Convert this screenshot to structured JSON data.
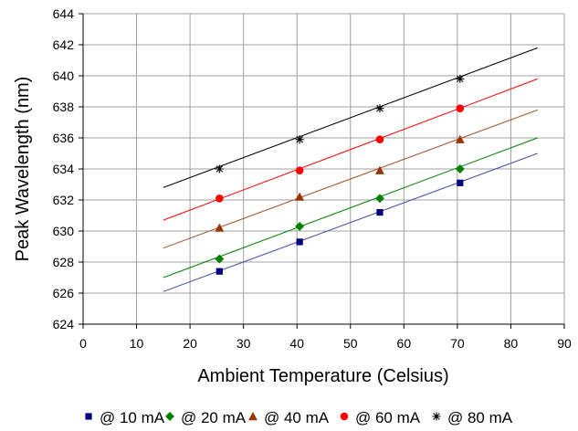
{
  "chart_data": {
    "type": "scatter",
    "xlabel": "Ambient Temperature (Celsius)",
    "ylabel": "Peak Wavelength (nm)",
    "xlim": [
      0,
      90
    ],
    "ylim": [
      624,
      644
    ],
    "xticks": [
      0,
      10,
      20,
      30,
      40,
      50,
      60,
      70,
      80,
      90
    ],
    "yticks": [
      624,
      626,
      628,
      630,
      632,
      634,
      636,
      638,
      640,
      642,
      644
    ],
    "grid": true,
    "legend_position": "bottom",
    "series": [
      {
        "name": "@ 10 mA",
        "marker": "square",
        "color": "#000080",
        "trend_color": "#4b4ba5",
        "x": [
          25.5,
          40.5,
          55.5,
          70.5
        ],
        "y": [
          627.4,
          629.3,
          631.2,
          633.1
        ],
        "trendline": {
          "x": [
            15,
            85
          ],
          "y": [
            626.1,
            635.0
          ]
        }
      },
      {
        "name": "@ 20 mA",
        "marker": "diamond",
        "color": "#008000",
        "trend_color": "#008000",
        "x": [
          25.5,
          40.5,
          55.5,
          70.5
        ],
        "y": [
          628.2,
          630.3,
          632.1,
          634.0
        ],
        "trendline": {
          "x": [
            15,
            85
          ],
          "y": [
            627.0,
            636.0
          ]
        }
      },
      {
        "name": "@ 40 mA",
        "marker": "triangle",
        "color": "#993300",
        "trend_color": "#a0522d",
        "x": [
          25.5,
          40.5,
          55.5,
          70.5
        ],
        "y": [
          630.2,
          632.2,
          633.9,
          635.9
        ],
        "trendline": {
          "x": [
            15,
            85
          ],
          "y": [
            628.9,
            637.8
          ]
        }
      },
      {
        "name": "@ 60 mA",
        "marker": "circle",
        "color": "#ff0000",
        "trend_color": "#ff0000",
        "x": [
          25.5,
          40.5,
          55.5,
          70.5
        ],
        "y": [
          632.1,
          633.9,
          635.9,
          637.9
        ],
        "trendline": {
          "x": [
            15,
            85
          ],
          "y": [
            630.7,
            639.8
          ]
        }
      },
      {
        "name": "@ 80 mA",
        "marker": "star",
        "color": "#000000",
        "trend_color": "#000000",
        "x": [
          25.5,
          40.5,
          55.5,
          70.5
        ],
        "y": [
          634.0,
          635.9,
          637.9,
          639.8
        ],
        "trendline": {
          "x": [
            15,
            85
          ],
          "y": [
            632.8,
            641.8
          ]
        }
      }
    ]
  }
}
